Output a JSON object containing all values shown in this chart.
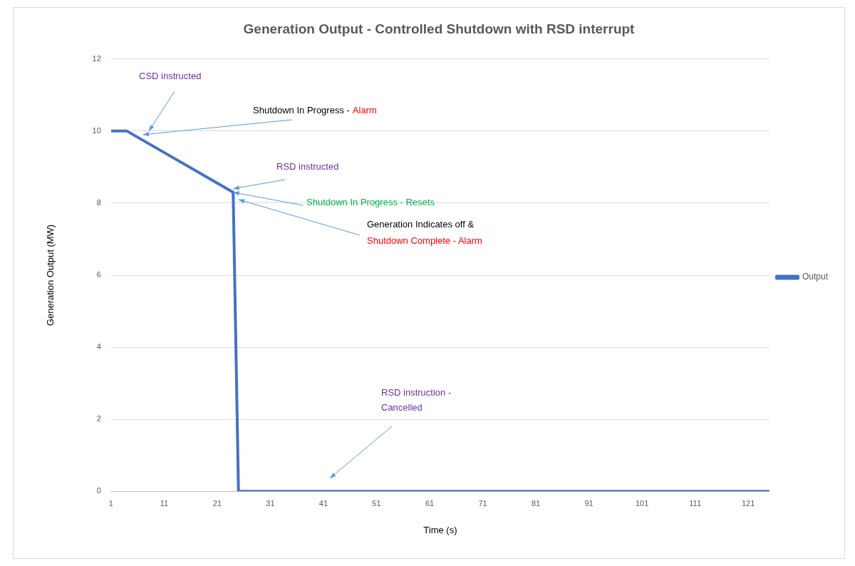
{
  "chart_data": {
    "type": "line",
    "title": "Generation Output - Controlled Shutdown with RSD interrupt",
    "xlabel": "Time (s)",
    "ylabel": "Generation Output (MW)",
    "x": [
      1,
      4,
      24,
      25,
      125
    ],
    "series": [
      {
        "name": "Output",
        "color": "#4472c4",
        "values": [
          10,
          10,
          8.3,
          0,
          0
        ]
      }
    ],
    "xlim": [
      1,
      125
    ],
    "xticks": [
      1,
      11,
      21,
      31,
      41,
      51,
      61,
      71,
      81,
      91,
      101,
      111,
      121
    ],
    "ylim": [
      0,
      12
    ],
    "yticks": [
      0,
      2,
      4,
      6,
      8,
      10,
      12
    ],
    "grid": "y",
    "legend": "right",
    "marker": "none",
    "line_style": "solid",
    "annotations": [
      "CSD instructed",
      {
        "text": "Shutdown In Progress -",
        "x": 7,
        "y": 9.9
      },
      "Alarm",
      {
        "text": "RSD instructed",
        "x": 24,
        "y": 8.4
      },
      {
        "text": "Shutdown In Progress - Resets",
        "x": 24,
        "y": 8.3
      },
      {
        "text": "Generation Indicates off &",
        "x": 25,
        "y": 8.1
      },
      "Shutdown Complete - Alarm",
      "RSD instruction -",
      "Cancelled"
    ]
  }
}
